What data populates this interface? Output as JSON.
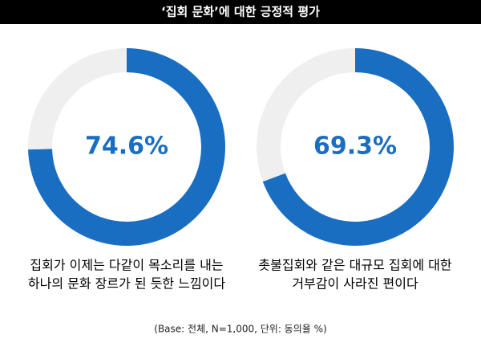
{
  "title": "‘집회 문화’에 대한 긍정적 평가",
  "note": "(Base: 전체, N=1,000, 단위: 동의율 %)",
  "chart_data": [
    {
      "type": "donut",
      "values": [
        74.6,
        25.4
      ],
      "value_labels": [
        "74.6%",
        null
      ],
      "colors": [
        "#1a6ec2",
        "#efefef"
      ],
      "caption": [
        "집회가 이제는 다같이 목소리를 내는",
        "하나의 문화 장르가 된 듯한 느낌이다"
      ]
    },
    {
      "type": "donut",
      "values": [
        69.3,
        30.7
      ],
      "value_labels": [
        "69.3%",
        null
      ],
      "colors": [
        "#1a6ec2",
        "#efefef"
      ],
      "caption": [
        "촛불집회와 같은 대규모 집회에 대한",
        "거부감이 사라진 편이다"
      ]
    }
  ]
}
